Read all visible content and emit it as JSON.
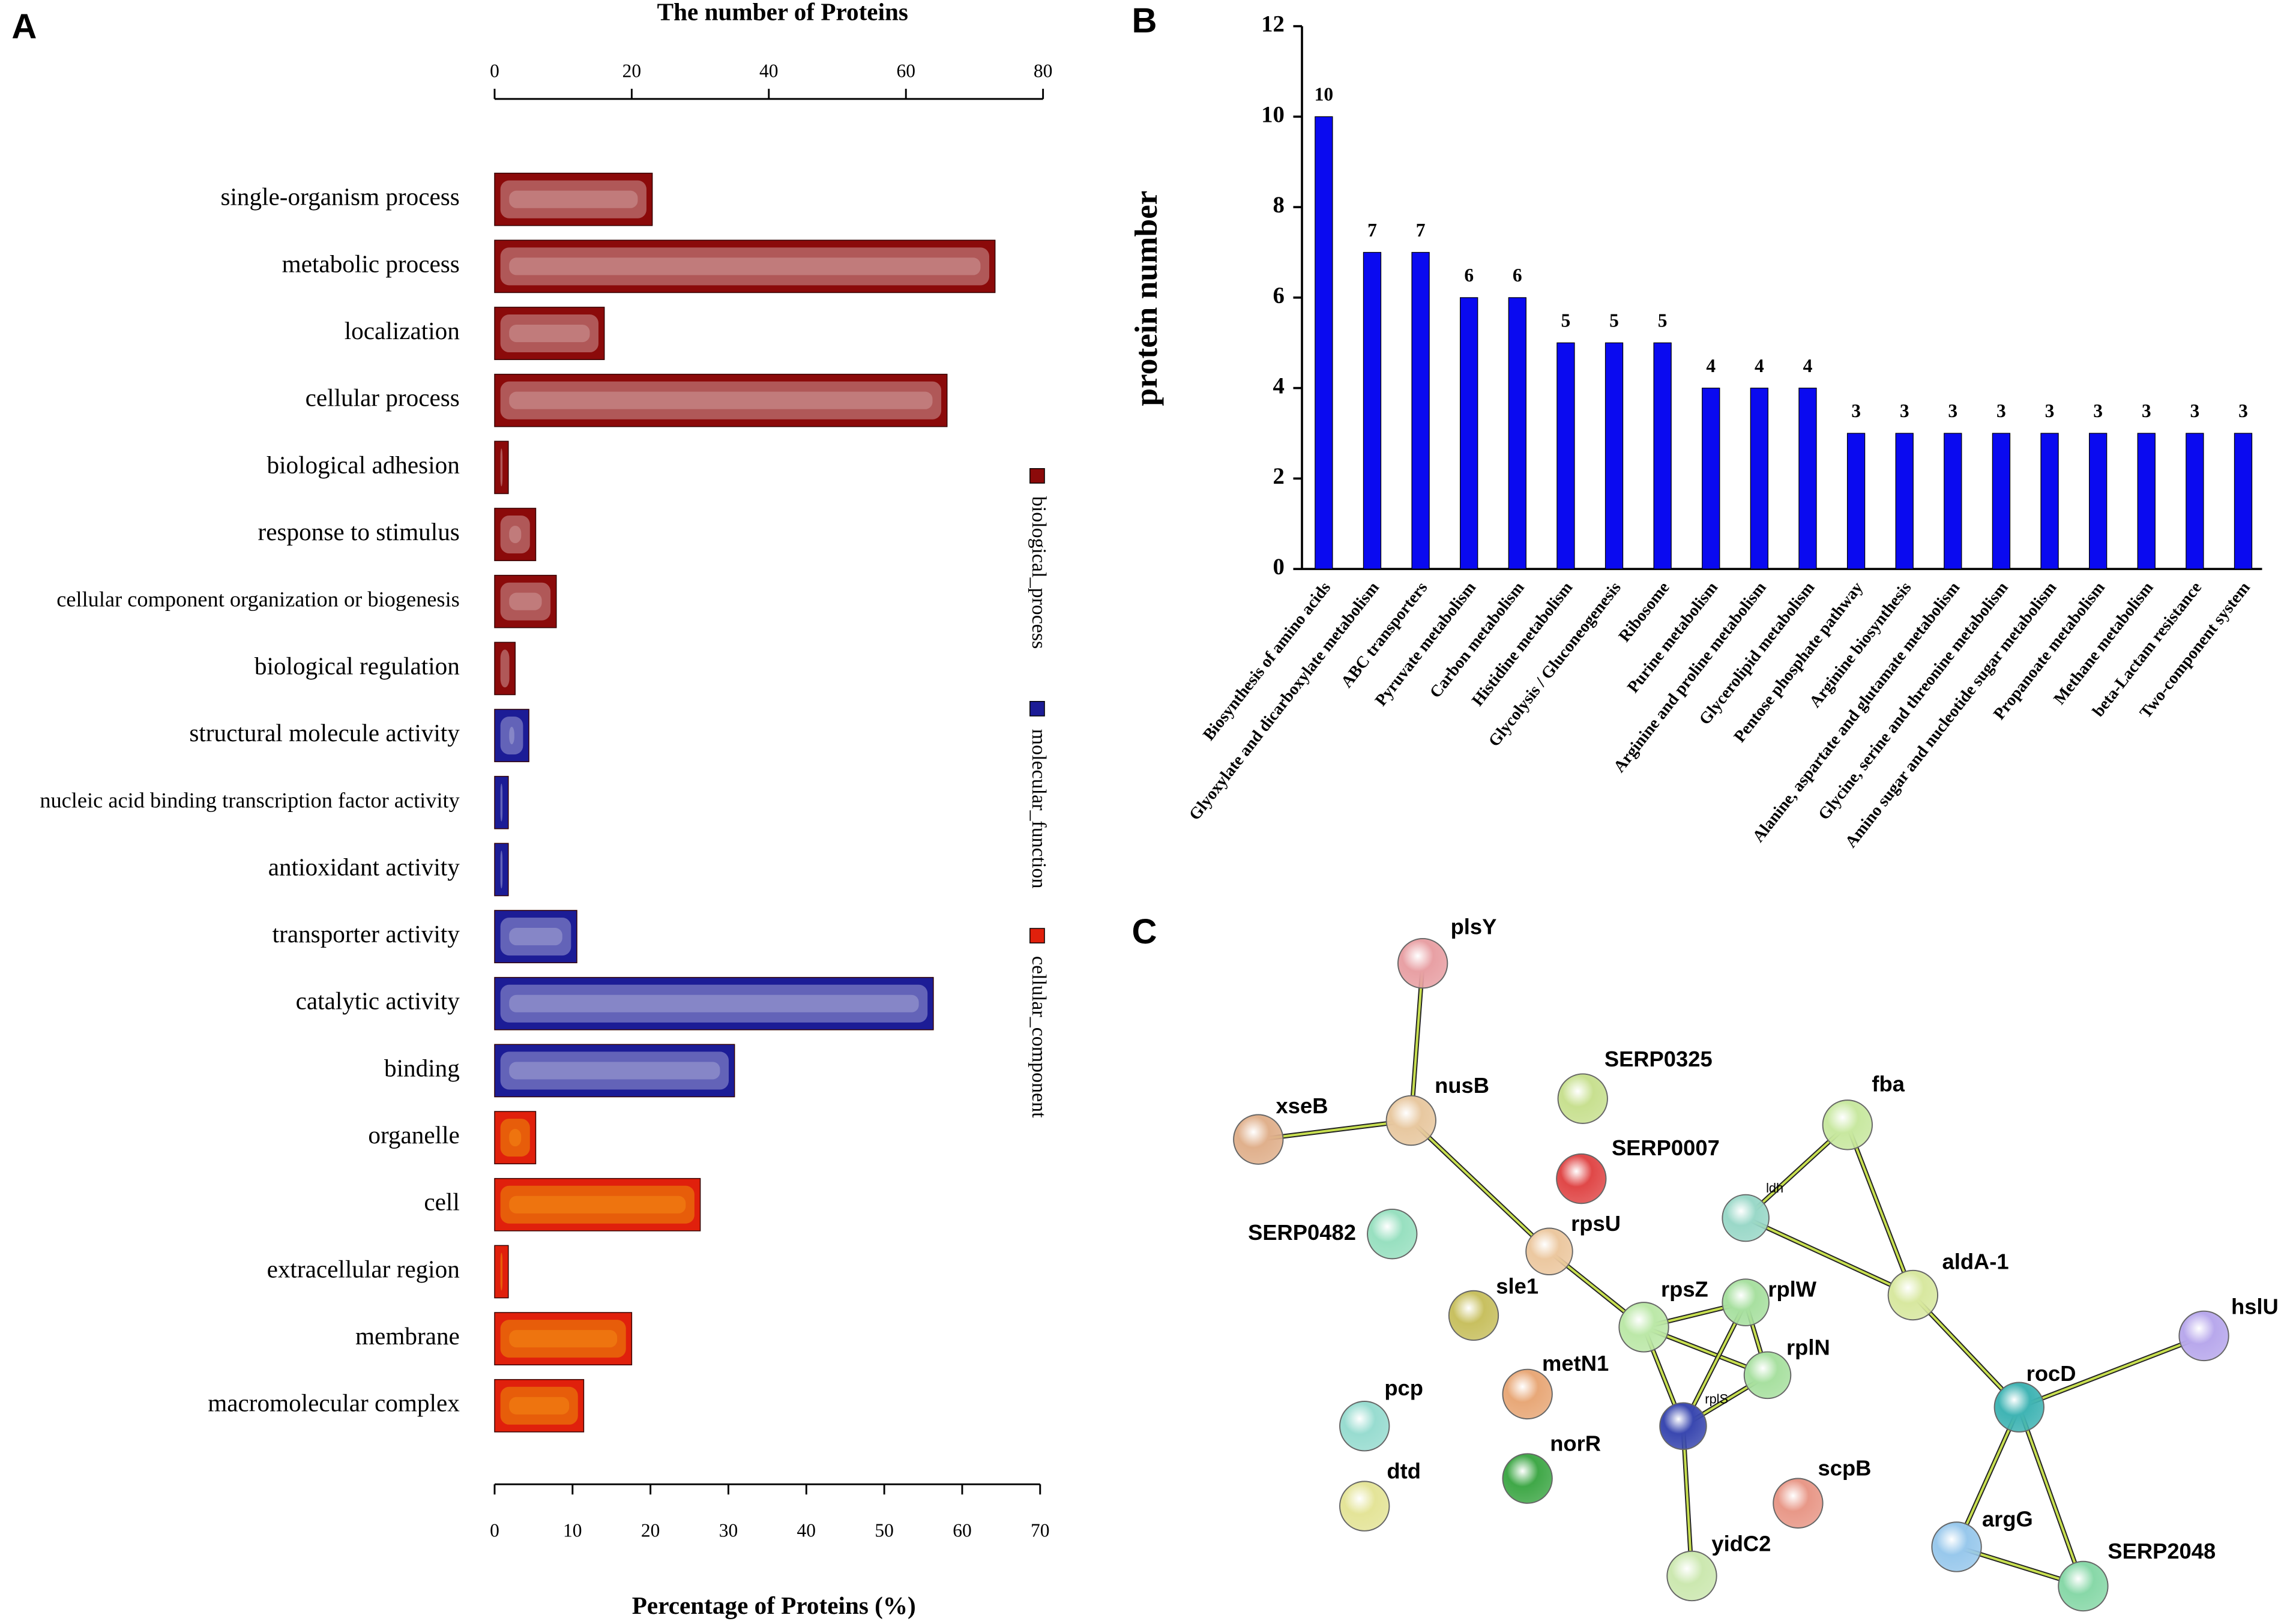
{
  "panels": [
    "A",
    "B",
    "C"
  ],
  "chart_data": [
    {
      "type": "hbar",
      "xlabel": "The number of Proteins",
      "x2label": "Percentage of Proteins (%)",
      "categories": [
        "single-organism process",
        "metabolic process",
        "localization",
        "cellular process",
        "biological adhesion",
        "response to stimulus",
        "cellular component organization or biogenesis",
        "biological regulation",
        "structural molecule activity",
        "nucleic acid binding transcription factor activity",
        "antioxidant activity",
        "transporter activity",
        "catalytic activity",
        "binding",
        "organelle",
        "cell",
        "extracellular region",
        "membrane",
        "macromolecular complex"
      ],
      "series": [
        {
          "name": "biological_process",
          "color": "#8b0a0a",
          "values": [
            23,
            73,
            16,
            66,
            2,
            6,
            9,
            3,
            null,
            null,
            null,
            null,
            null,
            null,
            null,
            null,
            null,
            null,
            null
          ]
        },
        {
          "name": "molecular_function",
          "color": "#1c1c96",
          "values": [
            null,
            null,
            null,
            null,
            null,
            null,
            null,
            null,
            5,
            2,
            2,
            12,
            64,
            35,
            null,
            null,
            null,
            null,
            null
          ]
        },
        {
          "name": "cellular_component",
          "color": "#e0200c",
          "values": [
            null,
            null,
            null,
            null,
            null,
            null,
            null,
            null,
            null,
            null,
            null,
            null,
            null,
            null,
            6,
            30,
            2,
            20,
            13
          ]
        }
      ],
      "xlim": [
        0,
        80
      ],
      "xticks": [
        0,
        20,
        40,
        60,
        80
      ],
      "x2lim": [
        0,
        70
      ],
      "x2ticks": [
        0,
        10,
        20,
        30,
        40,
        50,
        60,
        70
      ]
    },
    {
      "type": "bar",
      "ylabel": "protein number",
      "categories": [
        "Biosynthesis of amino acids",
        "Glyoxylate and dicarboxylate metabolism",
        "ABC transporters",
        "Pyruvate metabolism",
        "Carbon metabolism",
        "Histidine metabolism",
        "Glycolysis / Gluconeogenesis",
        "Ribosome",
        "Purine metabolism",
        "Arginine and proline metabolism",
        "Glycerolipid metabolism",
        "Pentose phosphate pathway",
        "Arginine biosynthesis",
        "Alanine, aspartate and glutamate metabolism",
        "Glycine, serine and threonine metabolism",
        "Amino sugar and nucleotide sugar metabolism",
        "Propanoate metabolism",
        "Methane metabolism",
        "beta-Lactam resistance",
        "Two-component system"
      ],
      "values": [
        10,
        7,
        7,
        6,
        6,
        5,
        5,
        5,
        4,
        4,
        4,
        3,
        3,
        3,
        3,
        3,
        3,
        3,
        3,
        3
      ],
      "color": "#0a0af0",
      "ylim": [
        0,
        12
      ],
      "yticks": [
        0,
        2,
        4,
        6,
        8,
        10,
        12
      ]
    }
  ],
  "network": {
    "nodes": [
      {
        "label": "plsY"
      },
      {
        "label": "xseB"
      },
      {
        "label": "nusB"
      },
      {
        "label": "SERP0325"
      },
      {
        "label": "SERP0007"
      },
      {
        "label": "SERP0482"
      },
      {
        "label": "rpsU"
      },
      {
        "label": "ldh"
      },
      {
        "label": "fba"
      },
      {
        "label": "sle1"
      },
      {
        "label": "rpsZ"
      },
      {
        "label": "rplW"
      },
      {
        "label": "aldA-1"
      },
      {
        "label": "rplN"
      },
      {
        "label": "hslU"
      },
      {
        "label": "rocD"
      },
      {
        "label": "metN1"
      },
      {
        "label": "rplS"
      },
      {
        "label": "pcp"
      },
      {
        "label": "norR"
      },
      {
        "label": "scpB"
      },
      {
        "label": "dtd"
      },
      {
        "label": "yidC2"
      },
      {
        "label": "argG"
      },
      {
        "label": "SERP2048"
      }
    ]
  }
}
